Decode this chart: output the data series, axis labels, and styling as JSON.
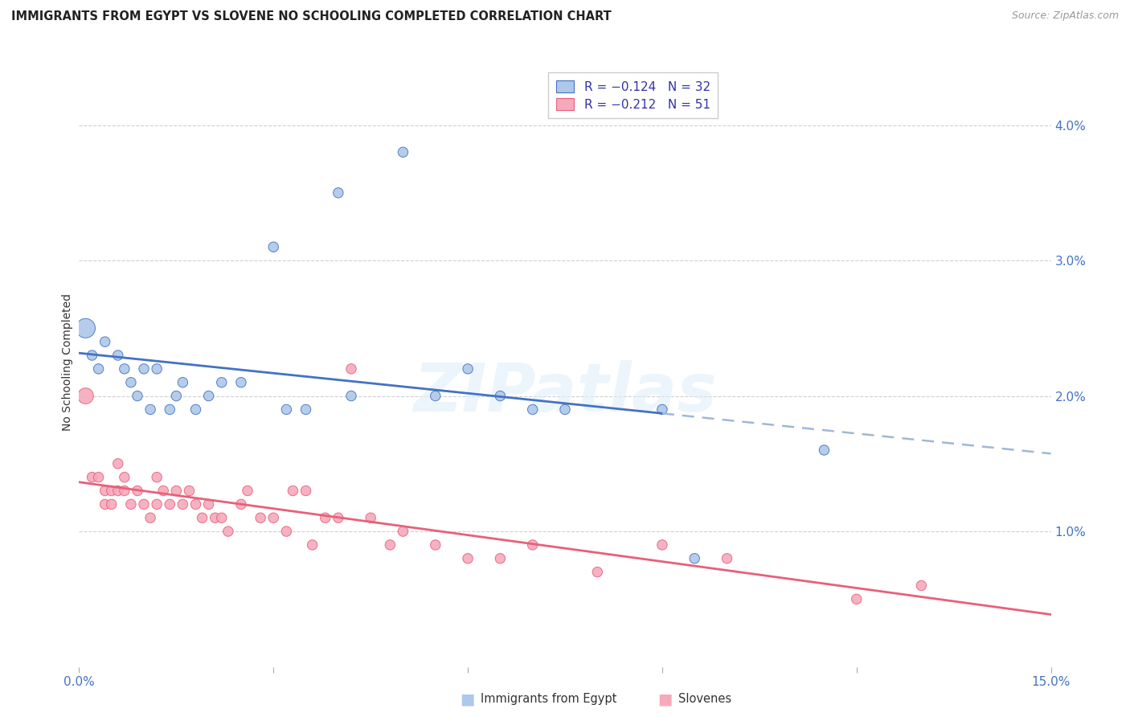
{
  "title": "IMMIGRANTS FROM EGYPT VS SLOVENE NO SCHOOLING COMPLETED CORRELATION CHART",
  "source": "Source: ZipAtlas.com",
  "ylabel": "No Schooling Completed",
  "right_yticks": [
    "4.0%",
    "3.0%",
    "2.0%",
    "1.0%"
  ],
  "right_ytick_vals": [
    0.04,
    0.03,
    0.02,
    0.01
  ],
  "xlim": [
    0.0,
    0.15
  ],
  "ylim": [
    0.0,
    0.045
  ],
  "color_egypt": "#adc8e8",
  "color_slovene": "#f5aabc",
  "color_egypt_line": "#4472c4",
  "color_slovene_line": "#e8607a",
  "color_egypt_dash": "#a0b8d8",
  "watermark": "ZIPatlas",
  "egypt_x": [
    0.001,
    0.002,
    0.003,
    0.004,
    0.006,
    0.007,
    0.008,
    0.009,
    0.01,
    0.011,
    0.012,
    0.014,
    0.015,
    0.016,
    0.018,
    0.02,
    0.022,
    0.025,
    0.03,
    0.032,
    0.035,
    0.04,
    0.042,
    0.05,
    0.055,
    0.06,
    0.065,
    0.07,
    0.075,
    0.09,
    0.095,
    0.115
  ],
  "egypt_y": [
    0.025,
    0.023,
    0.022,
    0.024,
    0.023,
    0.022,
    0.021,
    0.02,
    0.022,
    0.019,
    0.022,
    0.019,
    0.02,
    0.021,
    0.019,
    0.02,
    0.021,
    0.021,
    0.031,
    0.019,
    0.019,
    0.035,
    0.02,
    0.038,
    0.02,
    0.022,
    0.02,
    0.019,
    0.019,
    0.019,
    0.008,
    0.016
  ],
  "egypt_size": [
    300,
    80,
    80,
    80,
    80,
    80,
    80,
    80,
    80,
    80,
    80,
    80,
    80,
    80,
    80,
    80,
    80,
    80,
    80,
    80,
    80,
    80,
    80,
    80,
    80,
    80,
    80,
    80,
    80,
    80,
    80,
    80
  ],
  "slovene_x": [
    0.001,
    0.002,
    0.003,
    0.004,
    0.004,
    0.005,
    0.005,
    0.006,
    0.006,
    0.007,
    0.007,
    0.008,
    0.009,
    0.01,
    0.011,
    0.012,
    0.012,
    0.013,
    0.014,
    0.015,
    0.016,
    0.017,
    0.018,
    0.019,
    0.02,
    0.021,
    0.022,
    0.023,
    0.025,
    0.026,
    0.028,
    0.03,
    0.032,
    0.033,
    0.035,
    0.036,
    0.038,
    0.04,
    0.042,
    0.045,
    0.048,
    0.05,
    0.055,
    0.06,
    0.065,
    0.07,
    0.08,
    0.09,
    0.1,
    0.12,
    0.13
  ],
  "slovene_y": [
    0.02,
    0.014,
    0.014,
    0.013,
    0.012,
    0.012,
    0.013,
    0.013,
    0.015,
    0.014,
    0.013,
    0.012,
    0.013,
    0.012,
    0.011,
    0.012,
    0.014,
    0.013,
    0.012,
    0.013,
    0.012,
    0.013,
    0.012,
    0.011,
    0.012,
    0.011,
    0.011,
    0.01,
    0.012,
    0.013,
    0.011,
    0.011,
    0.01,
    0.013,
    0.013,
    0.009,
    0.011,
    0.011,
    0.022,
    0.011,
    0.009,
    0.01,
    0.009,
    0.008,
    0.008,
    0.009,
    0.007,
    0.009,
    0.008,
    0.005,
    0.006
  ],
  "slovene_size": [
    200,
    80,
    80,
    80,
    80,
    80,
    80,
    80,
    80,
    80,
    80,
    80,
    80,
    80,
    80,
    80,
    80,
    80,
    80,
    80,
    80,
    80,
    80,
    80,
    80,
    80,
    80,
    80,
    80,
    80,
    80,
    80,
    80,
    80,
    80,
    80,
    80,
    80,
    80,
    80,
    80,
    80,
    80,
    80,
    80,
    80,
    80,
    80,
    80,
    80,
    80
  ],
  "egypt_line_solid_end": 0.09,
  "bg_color": "#ffffff",
  "grid_color": "#d0d0d0",
  "title_fontsize": 10.5,
  "source_fontsize": 9
}
